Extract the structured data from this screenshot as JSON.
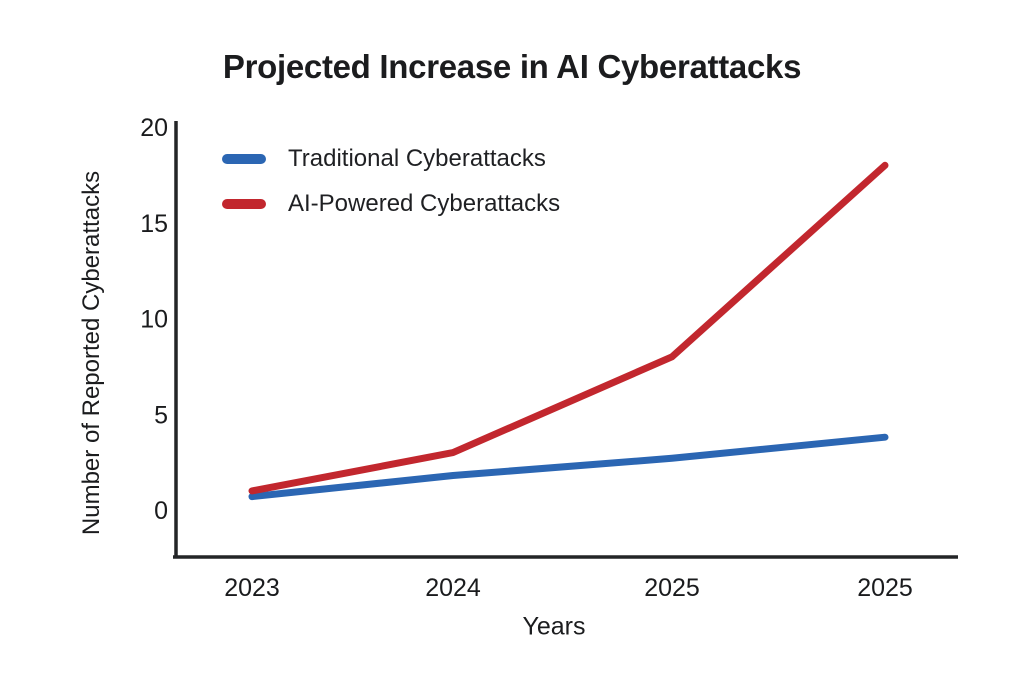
{
  "page": {
    "background_color": "#ffffff"
  },
  "chart": {
    "title": "Projected Increase in AI Cyberattacks",
    "xlabel": "Years",
    "ylabel": "Number of Reported Cyberattacks"
  },
  "chart_data": {
    "type": "line",
    "title": "Projected Increase in AI Cyberattacks",
    "xlabel": "Years",
    "ylabel": "Number of Reported Cyberattacks",
    "categories": [
      "2023",
      "2024",
      "2025",
      "2025"
    ],
    "series": [
      {
        "name": "Traditional Cyberattacks",
        "color": "#2b66b3",
        "values": [
          0.7,
          1.8,
          2.7,
          3.8
        ]
      },
      {
        "name": "AI-Powered Cyberattacks",
        "color": "#c2272e",
        "values": [
          1,
          3,
          8,
          18
        ]
      }
    ],
    "ylim": [
      0,
      20
    ],
    "yticks": [
      0,
      5,
      10,
      15,
      20
    ],
    "grid": false,
    "legend_position": "top-left",
    "axis_color": "#232527",
    "tick_label_color": "#1a1b1d",
    "line_width": 7
  }
}
